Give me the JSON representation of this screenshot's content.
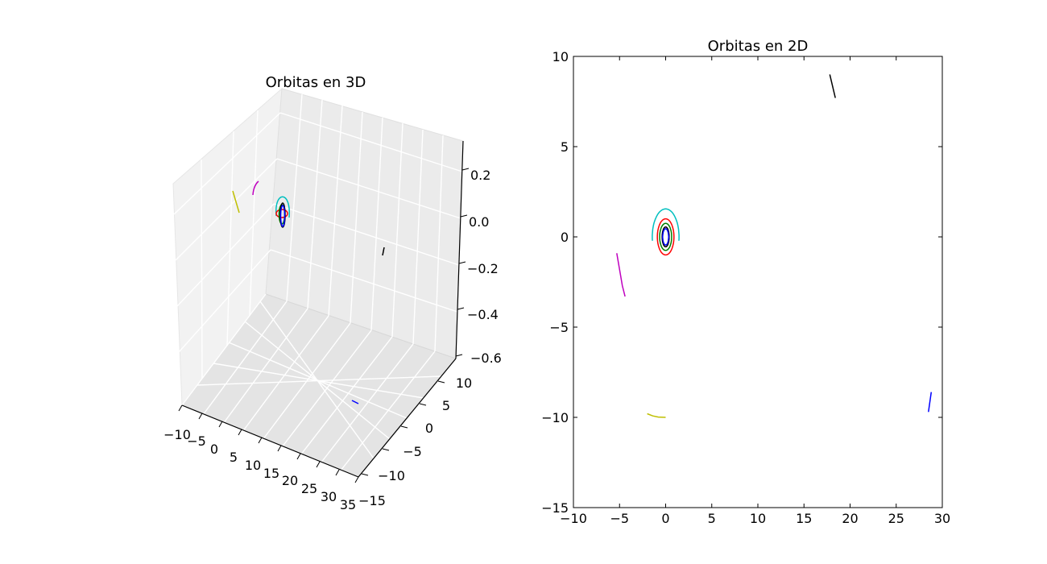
{
  "chart_data": [
    {
      "type": "line3d",
      "title": "Orbitas en 3D",
      "x_ticks": [
        "−10",
        "−5",
        "0",
        "5",
        "10",
        "15",
        "20",
        "25",
        "30",
        "35"
      ],
      "y_ticks": [
        "−15",
        "−10",
        "−5",
        "0",
        "5",
        "10"
      ],
      "z_ticks": [
        "−0.6",
        "−0.4",
        "−0.2",
        "0.0",
        "0.2"
      ],
      "xlim": [
        -10,
        35
      ],
      "ylim": [
        -15,
        12
      ],
      "zlim": [
        -0.6,
        0.3
      ],
      "grid": true
    },
    {
      "type": "line",
      "title": "Orbitas en 2D",
      "xlim": [
        -10,
        30
      ],
      "ylim": [
        -15,
        10
      ],
      "x_ticks": [
        "−10",
        "−5",
        "0",
        "5",
        "10",
        "15",
        "20",
        "25",
        "30"
      ],
      "y_ticks": [
        "−15",
        "−10",
        "−5",
        "0",
        "5",
        "10"
      ],
      "grid": false,
      "series": [
        {
          "color": "#ff0000",
          "kind": "ellipse",
          "cx": 0,
          "cy": 0,
          "rx": 0.9,
          "ry": 1.0,
          "t0": 0,
          "t1": 360
        },
        {
          "color": "#008000",
          "kind": "ellipse",
          "cx": 0,
          "cy": 0,
          "rx": 0.65,
          "ry": 0.75,
          "t0": 0,
          "t1": 360
        },
        {
          "color": "#000000",
          "kind": "ellipse",
          "cx": 0,
          "cy": 0,
          "rx": 0.38,
          "ry": 0.55,
          "t0": 0,
          "t1": 360
        },
        {
          "color": "#0000ff",
          "kind": "ellipse",
          "cx": 0,
          "cy": 0,
          "rx": 0.32,
          "ry": 0.45,
          "t0": 0,
          "t1": 360
        },
        {
          "color": "#00bfbf",
          "kind": "ellipse",
          "cx": 0,
          "cy": 0,
          "rx": 1.45,
          "ry": 1.55,
          "t0": -8,
          "t1": 188
        },
        {
          "color": "#bf00bf",
          "kind": "path",
          "x": [
            -5.3,
            -5.1,
            -4.9,
            -4.7,
            -4.4
          ],
          "y": [
            -0.9,
            -1.5,
            -2.1,
            -2.7,
            -3.3
          ]
        },
        {
          "color": "#bfbf00",
          "kind": "path",
          "x": [
            -2.0,
            -1.4,
            -0.8,
            0.0
          ],
          "y": [
            -9.8,
            -9.92,
            -9.98,
            -10.0
          ]
        },
        {
          "color": "#000000",
          "kind": "path",
          "x": [
            17.8,
            18.4
          ],
          "y": [
            9.0,
            7.7
          ]
        },
        {
          "color": "#0000ff",
          "kind": "path",
          "x": [
            28.8,
            28.5
          ],
          "y": [
            -8.6,
            -9.7
          ]
        }
      ]
    }
  ]
}
